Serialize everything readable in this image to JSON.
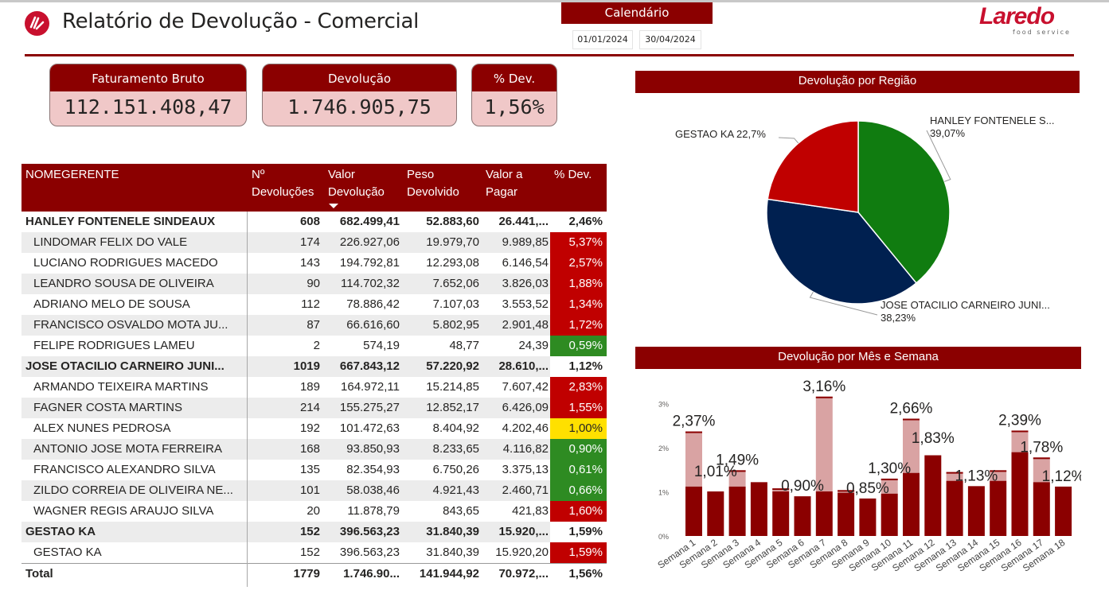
{
  "header": {
    "title": "Relatório de Devolução - Comercial",
    "calendar_label": "Calendário",
    "date_start": "01/01/2024",
    "date_end": "30/04/2024",
    "brand_name": "Laredo",
    "brand_sub": "food service"
  },
  "kpis": {
    "faturamento": {
      "label": "Faturamento Bruto",
      "value": "112.151.408,47"
    },
    "devolucao": {
      "label": "Devolução",
      "value": "1.746.905,75"
    },
    "pct_dev": {
      "label": "% Dev.",
      "value": "1,56%"
    }
  },
  "table": {
    "headers": {
      "name": "NOMEGERENTE",
      "devolucoes": [
        "Nº",
        "Devoluções"
      ],
      "valor": [
        "Valor",
        "Devolução"
      ],
      "peso": [
        "Peso",
        "Devolvido"
      ],
      "pagar": [
        "Valor a",
        "Pagar"
      ],
      "pct": "% Dev."
    },
    "rows": [
      {
        "name": "HANLEY FONTENELE SINDEAUX",
        "level": 0,
        "n": "608",
        "valor": "682.499,41",
        "peso": "52.883,60",
        "pagar": "26.441,...",
        "pct": "2,46%"
      },
      {
        "name": "LINDOMAR FELIX DO VALE",
        "level": 1,
        "n": "174",
        "valor": "226.927,06",
        "peso": "19.979,70",
        "pagar": "9.989,85",
        "pct": "5,37%",
        "color": "red"
      },
      {
        "name": "LUCIANO RODRIGUES MACEDO",
        "level": 1,
        "n": "143",
        "valor": "194.792,81",
        "peso": "12.293,08",
        "pagar": "6.146,54",
        "pct": "2,57%",
        "color": "red"
      },
      {
        "name": "LEANDRO SOUSA DE OLIVEIRA",
        "level": 1,
        "n": "90",
        "valor": "114.702,32",
        "peso": "7.652,06",
        "pagar": "3.826,03",
        "pct": "1,88%",
        "color": "red"
      },
      {
        "name": "ADRIANO MELO DE SOUSA",
        "level": 1,
        "n": "112",
        "valor": "78.886,42",
        "peso": "7.107,03",
        "pagar": "3.553,52",
        "pct": "1,34%",
        "color": "red"
      },
      {
        "name": "FRANCISCO OSVALDO MOTA JU...",
        "level": 1,
        "n": "87",
        "valor": "66.616,60",
        "peso": "5.802,95",
        "pagar": "2.901,48",
        "pct": "1,72%",
        "color": "red"
      },
      {
        "name": "FELIPE RODRIGUES LAMEU",
        "level": 1,
        "n": "2",
        "valor": "574,19",
        "peso": "48,77",
        "pagar": "24,39",
        "pct": "0,59%",
        "color": "green"
      },
      {
        "name": "JOSE OTACILIO CARNEIRO JUNI...",
        "level": 0,
        "n": "1019",
        "valor": "667.843,12",
        "peso": "57.220,92",
        "pagar": "28.610,...",
        "pct": "1,12%"
      },
      {
        "name": "ARMANDO TEIXEIRA MARTINS",
        "level": 1,
        "n": "189",
        "valor": "164.972,11",
        "peso": "15.214,85",
        "pagar": "7.607,42",
        "pct": "2,83%",
        "color": "red"
      },
      {
        "name": "FAGNER COSTA MARTINS",
        "level": 1,
        "n": "214",
        "valor": "155.275,27",
        "peso": "12.852,17",
        "pagar": "6.426,09",
        "pct": "1,55%",
        "color": "red"
      },
      {
        "name": "ALEX NUNES PEDROSA",
        "level": 1,
        "n": "192",
        "valor": "101.472,63",
        "peso": "8.404,92",
        "pagar": "4.202,46",
        "pct": "1,00%",
        "color": "yellow"
      },
      {
        "name": "ANTONIO JOSE MOTA FERREIRA",
        "level": 1,
        "n": "168",
        "valor": "93.850,93",
        "peso": "8.233,65",
        "pagar": "4.116,82",
        "pct": "0,90%",
        "color": "green"
      },
      {
        "name": "FRANCISCO ALEXANDRO SILVA",
        "level": 1,
        "n": "135",
        "valor": "82.354,93",
        "peso": "6.750,26",
        "pagar": "3.375,13",
        "pct": "0,61%",
        "color": "green"
      },
      {
        "name": "ZILDO CORREIA DE OLIVEIRA NE...",
        "level": 1,
        "n": "101",
        "valor": "58.038,46",
        "peso": "4.921,43",
        "pagar": "2.460,71",
        "pct": "0,66%",
        "color": "green"
      },
      {
        "name": "WAGNER REGIS ARAUJO SILVA",
        "level": 1,
        "n": "20",
        "valor": "11.878,79",
        "peso": "843,65",
        "pagar": "421,83",
        "pct": "1,60%",
        "color": "red"
      },
      {
        "name": "GESTAO KA",
        "level": 0,
        "n": "152",
        "valor": "396.563,23",
        "peso": "31.840,39",
        "pagar": "15.920,...",
        "pct": "1,59%"
      },
      {
        "name": "GESTAO KA",
        "level": 1,
        "n": "152",
        "valor": "396.563,23",
        "peso": "31.840,39",
        "pagar": "15.920,20",
        "pct": "1,59%",
        "color": "red"
      }
    ],
    "total": {
      "name": "Total",
      "n": "1779",
      "valor": "1.746.90...",
      "peso": "141.944,92",
      "pagar": "70.972,...",
      "pct": "1,56%"
    },
    "pct_colors": {
      "red": "#c00000",
      "green": "#2e8b22",
      "yellow": "#ffe000"
    }
  },
  "pie": {
    "title": "Devolução por Região",
    "colors": {
      "HANLEY FONTENELE S...": "#107c10",
      "JOSE OTACILIO CARNEIRO JUNI...": "#002050",
      "GESTAO KA": "#c00000"
    }
  },
  "bar": {
    "title": "Devolução por Mês e Semana",
    "color_dark": "#8b0000",
    "color_light": "#d9a3a3"
  },
  "chart_data": [
    {
      "type": "pie",
      "title": "Devolução por Região",
      "slices": [
        {
          "label": "HANLEY FONTENELE S...",
          "value": 39.07,
          "display": "39,07%"
        },
        {
          "label": "JOSE OTACILIO CARNEIRO JUNI...",
          "value": 38.23,
          "display": "38,23%"
        },
        {
          "label": "GESTAO KA",
          "value": 22.7,
          "display": "22,7%"
        }
      ]
    },
    {
      "type": "bar",
      "title": "Devolução por Mês e Semana",
      "categories": [
        "Semana 1",
        "Semana 2",
        "Semana 3",
        "Semana 4",
        "Semana 5",
        "Semana 6",
        "Semana 7",
        "Semana 8",
        "Semana 9",
        "Semana 10",
        "Semana 11",
        "Semana 12",
        "Semana 13",
        "Semana 14",
        "Semana 15",
        "Semana 16",
        "Semana 17",
        "Semana 18"
      ],
      "series": [
        {
          "values": [
            1.12,
            1.01,
            1.12,
            1.22,
            1.01,
            0.9,
            1.01,
            0.98,
            0.85,
            0.96,
            1.43,
            1.83,
            1.25,
            1.13,
            1.25,
            1.9,
            1.22,
            1.12
          ]
        },
        {
          "values": [
            2.37,
            1.01,
            1.49,
            1.22,
            1.08,
            0.9,
            3.16,
            1.04,
            0.85,
            1.3,
            2.66,
            1.83,
            1.45,
            1.13,
            1.49,
            2.39,
            1.78,
            1.12
          ]
        }
      ],
      "data_labels": [
        {
          "category": "Semana 1",
          "text": "2,37%"
        },
        {
          "category": "Semana 2",
          "text": "1,01%"
        },
        {
          "category": "Semana 3",
          "text": "1,49%"
        },
        {
          "category": "Semana 6",
          "text": "0,90%"
        },
        {
          "category": "Semana 7",
          "text": "3,16%"
        },
        {
          "category": "Semana 9",
          "text": "0,85%"
        },
        {
          "category": "Semana 10",
          "text": "1,30%"
        },
        {
          "category": "Semana 11",
          "text": "2,66%"
        },
        {
          "category": "Semana 12",
          "text": "1,83%"
        },
        {
          "category": "Semana 14",
          "text": "1,13%"
        },
        {
          "category": "Semana 16",
          "text": "2,39%"
        },
        {
          "category": "Semana 17",
          "text": "1,78%"
        },
        {
          "category": "Semana 18",
          "text": "1,12%"
        }
      ],
      "yticks": [
        "0%",
        "1%",
        "2%",
        "3%"
      ],
      "ylim": [
        0,
        3.3
      ]
    }
  ]
}
